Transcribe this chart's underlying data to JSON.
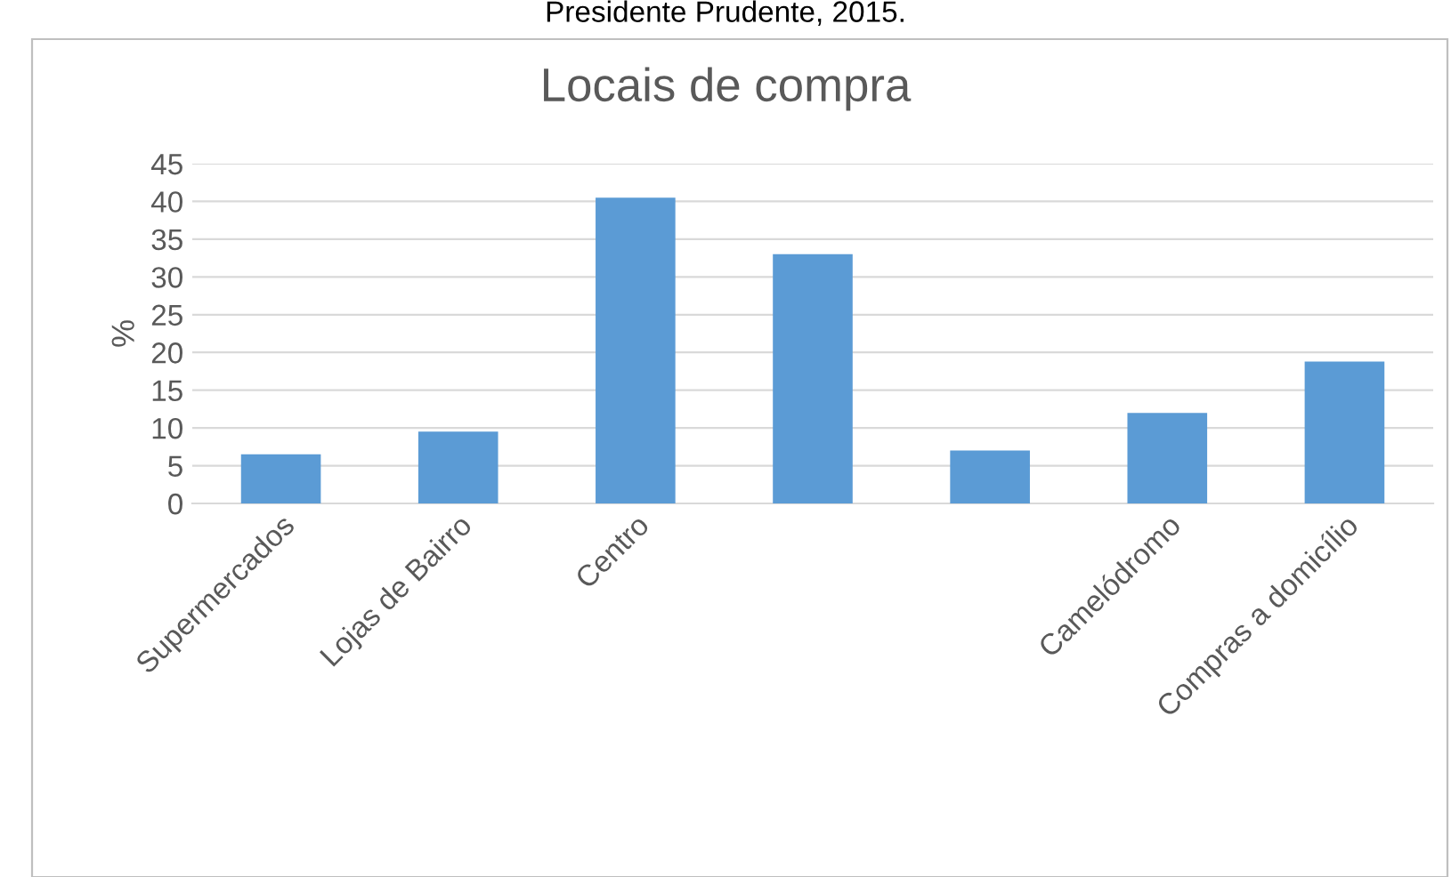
{
  "chart_data": {
    "type": "bar",
    "title": "Locais de compra",
    "subtitle": "Presidente Prudente, 2015.",
    "ylabel": "%",
    "categories": [
      "Supermercados",
      "Lojas de Bairro",
      "Centro",
      null,
      null,
      "Camelódromo",
      "Compras a domicílio"
    ],
    "values": [
      6.5,
      9.5,
      40.5,
      33,
      7,
      12,
      18.8
    ],
    "color": "#5b9bd5",
    "ylim": [
      0,
      45
    ],
    "yticks": [
      0,
      5,
      10,
      15,
      20,
      25,
      30,
      35,
      40,
      45
    ],
    "grid": "y",
    "legend": false
  }
}
